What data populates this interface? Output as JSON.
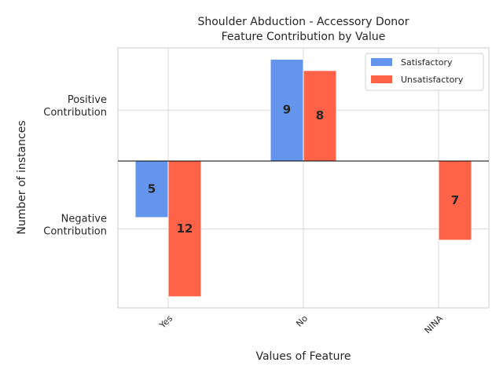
{
  "chart_data": {
    "type": "bar",
    "title_lines": [
      "Shoulder Abduction - Accessory Donor",
      "Feature Contribution by Value"
    ],
    "xlabel": "Values of Feature",
    "ylabel": "Number of instances",
    "categories": [
      "Yes",
      "No",
      "NINA"
    ],
    "y_ticks": [
      {
        "value": 4.5,
        "lines": [
          "Positive",
          "Contribution"
        ]
      },
      {
        "value": -6,
        "lines": [
          "Negative",
          "Contribution"
        ]
      }
    ],
    "ylim": [
      -13.3,
      10
    ],
    "grid": true,
    "legend_position": "top-right",
    "series": [
      {
        "name": "Satisfactory",
        "color": "#6495ED",
        "values": [
          -5,
          9,
          null
        ]
      },
      {
        "name": "Unsatisfactory",
        "color": "#FF6347",
        "values": [
          -12,
          8,
          -7
        ]
      }
    ],
    "data_labels": [
      {
        "series": 0,
        "index": 0,
        "text": "5"
      },
      {
        "series": 1,
        "index": 0,
        "text": "12"
      },
      {
        "series": 0,
        "index": 1,
        "text": "9"
      },
      {
        "series": 1,
        "index": 1,
        "text": "8"
      },
      {
        "series": 1,
        "index": 2,
        "text": "7"
      }
    ]
  }
}
